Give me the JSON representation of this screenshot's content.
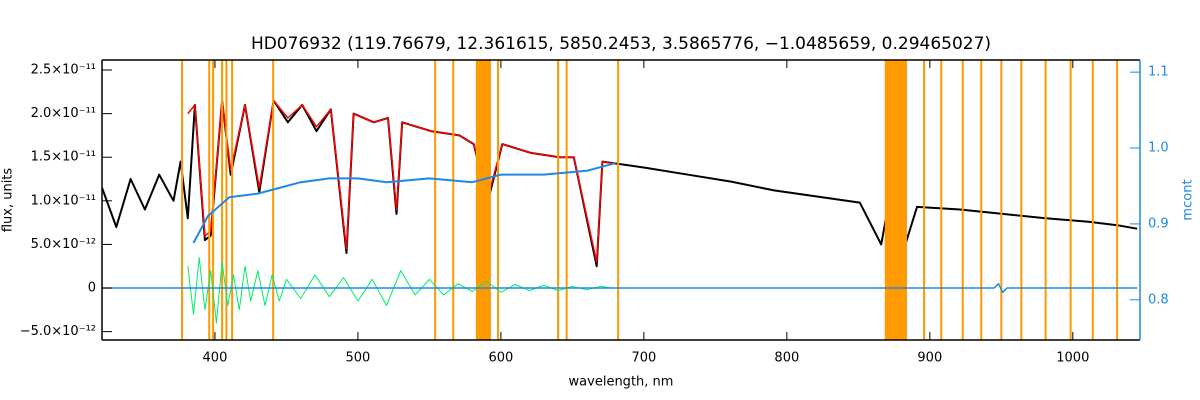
{
  "chart_data": {
    "type": "line",
    "title": "HD076932   (119.76679, 12.361615, 5850.2453, 3.5865776, −1.0485659, 0.29465027)",
    "xlabel": "wavelength, nm",
    "ylabel": "flux, units",
    "y2label": "mcont",
    "xlim": [
      321,
      1047
    ],
    "xticks": [
      400,
      500,
      600,
      700,
      800,
      900,
      1000
    ],
    "ylim": [
      -5.96e-12,
      2.615e-11
    ],
    "yticks": [
      {
        "value": -5e-12,
        "label": "−5.0×10⁻¹²"
      },
      {
        "value": 0,
        "label": "0"
      },
      {
        "value": 5e-12,
        "label": "5.0×10⁻¹²"
      },
      {
        "value": 1e-11,
        "label": "1.0×10⁻¹¹"
      },
      {
        "value": 1.5e-11,
        "label": "1.5×10⁻¹¹"
      },
      {
        "value": 2e-11,
        "label": "2.0×10⁻¹¹"
      },
      {
        "value": 2.5e-11,
        "label": "2.5×10⁻¹¹"
      }
    ],
    "y2lim": [
      0.747,
      1.116
    ],
    "y2ticks": [
      0.8,
      0.9,
      {
        "value": 1.0,
        "label": "1.0"
      },
      1.1
    ],
    "y2color": "#1e88e5",
    "mask_regions": {
      "color": "#ff9900",
      "regions": [
        [
          376.3,
          377.7
        ],
        [
          395.3,
          396.7
        ],
        [
          398,
          399.3
        ],
        [
          404.3,
          405.7
        ],
        [
          407.3,
          408.7
        ],
        [
          411.3,
          412.7
        ],
        [
          440,
          441.3
        ],
        [
          553.3,
          554.7
        ],
        [
          566,
          567.3
        ],
        [
          582.5,
          593
        ],
        [
          597.3,
          598.7
        ],
        [
          639.3,
          640.7
        ],
        [
          645.3,
          646.7
        ],
        [
          681.3,
          682.7
        ],
        [
          868.5,
          884
        ],
        [
          895.3,
          896.7
        ],
        [
          907.3,
          908.7
        ],
        [
          922.3,
          923.7
        ],
        [
          935.3,
          936.7
        ],
        [
          949.3,
          950.7
        ],
        [
          963.3,
          964.7
        ],
        [
          980.3,
          981.7
        ],
        [
          997.8,
          999.2
        ],
        [
          1013.3,
          1014.7
        ],
        [
          1030.3,
          1031.7
        ]
      ]
    },
    "series": [
      {
        "color": "#000000",
        "width": 2,
        "x": [
          321,
          331,
          341,
          351,
          361,
          371,
          376,
          381,
          386,
          393,
          397,
          405,
          411,
          421,
          431,
          441,
          451,
          461,
          471,
          481,
          492,
          497,
          511,
          521,
          527,
          531,
          551,
          571,
          581,
          591,
          601,
          621,
          641,
          651,
          667,
          671,
          701,
          731,
          761,
          791,
          821,
          851,
          866,
          871,
          881,
          891,
          921,
          951,
          981,
          1011,
          1031,
          1045
        ],
        "values": [
          1.15e-11,
          7e-12,
          1.25e-11,
          9e-12,
          1.3e-11,
          1e-11,
          1.45e-11,
          8e-12,
          2.1e-11,
          5.5e-12,
          6e-12,
          2.15e-11,
          1.3e-11,
          2.1e-11,
          1.1e-11,
          2.15e-11,
          1.9e-11,
          2.1e-11,
          1.8e-11,
          2.05e-11,
          4e-12,
          2e-11,
          1.9e-11,
          1.95e-11,
          8.5e-12,
          1.9e-11,
          1.8e-11,
          1.75e-11,
          1.65e-11,
          1e-11,
          1.65e-11,
          1.55e-11,
          1.5e-11,
          1.5e-11,
          2.5e-12,
          1.45e-11,
          1.38e-11,
          1.3e-11,
          1.22e-11,
          1.12e-11,
          1.05e-11,
          9.8e-12,
          5e-12,
          9.5e-12,
          4e-12,
          9.3e-12,
          9e-12,
          8.5e-12,
          8e-12,
          7.6e-12,
          7.2e-12,
          6.8e-12
        ]
      },
      {
        "color": "#ff0000",
        "width": 1.5,
        "x": [
          381,
          386,
          393,
          397,
          405,
          411,
          421,
          431,
          441,
          451,
          461,
          471,
          481,
          492,
          497,
          511,
          521,
          527,
          531,
          551,
          571,
          581,
          591,
          601,
          621,
          641,
          651,
          667,
          671,
          681
        ],
        "values": [
          2e-11,
          2.1e-11,
          6e-12,
          6.5e-12,
          2.15e-11,
          1.35e-11,
          2.1e-11,
          1.15e-11,
          2.15e-11,
          1.95e-11,
          2.1e-11,
          1.85e-11,
          2.05e-11,
          4.5e-12,
          2e-11,
          1.9e-11,
          1.95e-11,
          9e-12,
          1.9e-11,
          1.8e-11,
          1.75e-11,
          1.65e-11,
          1.05e-11,
          1.65e-11,
          1.55e-11,
          1.5e-11,
          1.5e-11,
          3e-12,
          1.45e-11,
          1.42e-11
        ]
      },
      {
        "color": "#00ee66",
        "width": 1,
        "x": [
          381,
          385,
          389,
          393,
          397,
          401,
          405,
          409,
          413,
          417,
          421,
          425,
          430,
          435,
          440,
          445,
          450,
          460,
          470,
          480,
          490,
          500,
          510,
          520,
          530,
          540,
          550,
          560,
          570,
          580,
          590,
          600,
          610,
          620,
          630,
          640,
          650,
          660,
          670,
          677
        ],
        "values": [
          2.5e-12,
          -3e-12,
          3.5e-12,
          -2.5e-12,
          2e-12,
          -4e-12,
          3e-12,
          -2e-12,
          1.5e-12,
          -2.5e-12,
          2.5e-12,
          -1.5e-12,
          2e-12,
          -2e-12,
          1.5e-12,
          -1.5e-12,
          1e-12,
          -1.2e-12,
          1.5e-12,
          -1e-12,
          1.2e-12,
          -1.5e-12,
          1e-12,
          -2e-12,
          2e-12,
          -8e-13,
          1e-12,
          -8e-13,
          5e-13,
          -4e-13,
          8e-13,
          -5e-13,
          4e-13,
          -3e-13,
          3e-13,
          -3e-13,
          2e-13,
          -2e-13,
          2e-13,
          0
        ]
      },
      {
        "color": "#1e88e5",
        "width": 1.5,
        "x": [
          321,
          945,
          948,
          951,
          954,
          1045
        ],
        "values": [
          0,
          0,
          5e-13,
          -5e-13,
          0,
          0
        ]
      },
      {
        "color": "#1e88e5",
        "width": 2,
        "axis": "y2",
        "x": [
          385,
          395,
          410,
          430,
          460,
          480,
          500,
          520,
          550,
          580,
          600,
          630,
          660,
          680
        ],
        "values": [
          0.875,
          0.91,
          0.935,
          0.94,
          0.955,
          0.96,
          0.96,
          0.955,
          0.96,
          0.955,
          0.965,
          0.965,
          0.97,
          0.98
        ]
      }
    ]
  }
}
